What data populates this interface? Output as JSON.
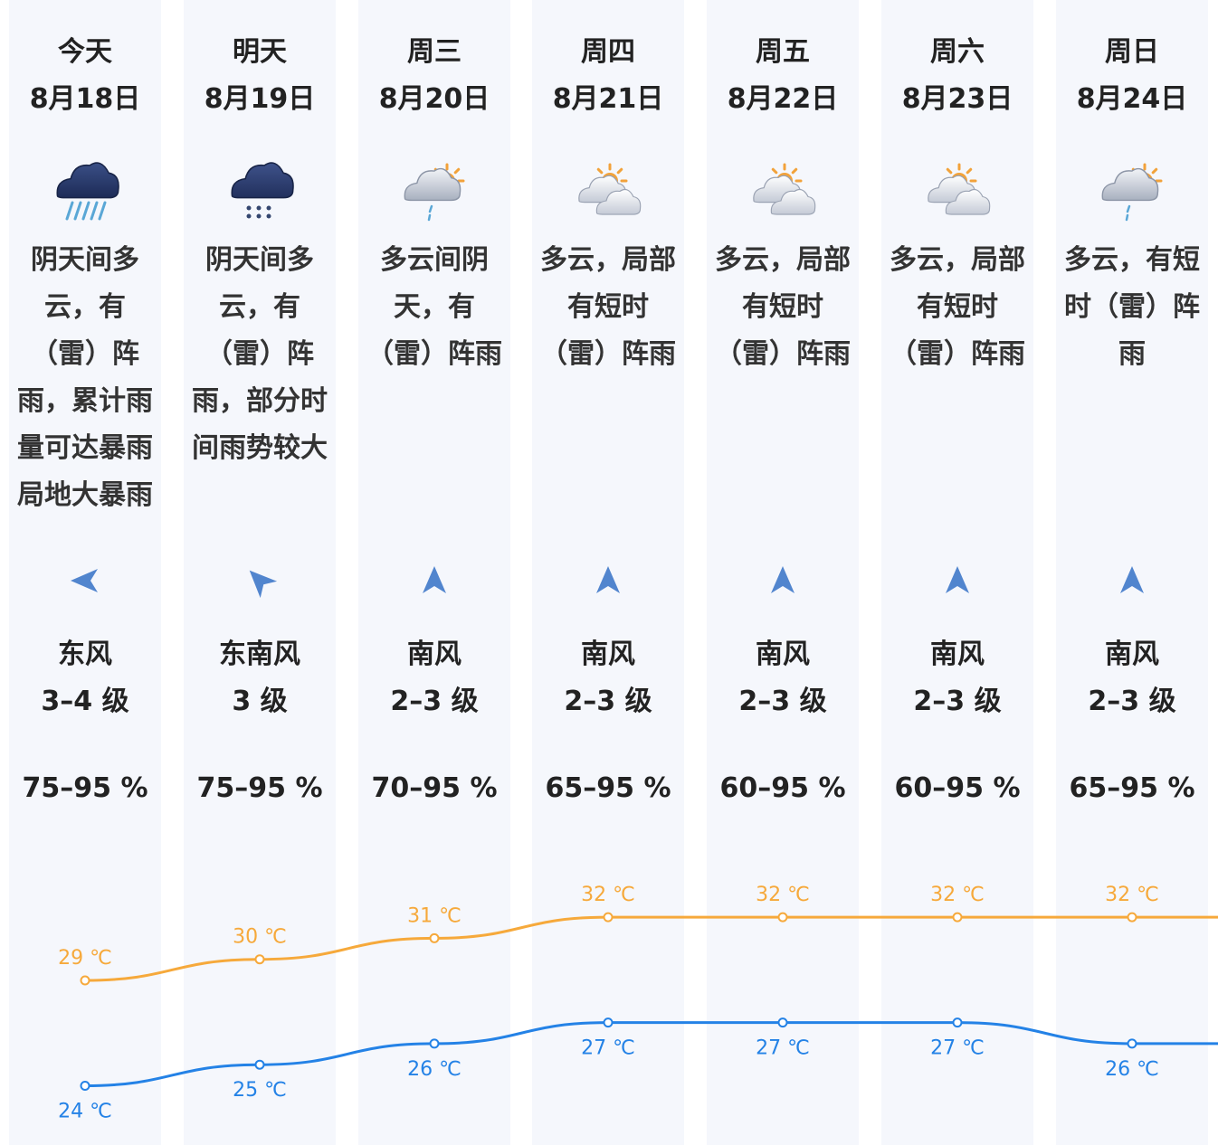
{
  "days": [
    {
      "day": "今天",
      "date": "8月18日",
      "icon": "heavy-rain-icon",
      "desc": [
        "阴天间多",
        "云，有",
        "（雷）阵",
        "雨，累计雨",
        "量可达暴雨",
        "局地大暴雨"
      ],
      "wind_dir": "东风",
      "wind_level": "3–4 级",
      "wind_arrow": "arrow-west-icon",
      "humidity": "75–95 %",
      "high": "29 ℃",
      "low": "24 ℃"
    },
    {
      "day": "明天",
      "date": "8月19日",
      "icon": "rain-icon",
      "desc": [
        "阴天间多",
        "云，有",
        "（雷）阵",
        "雨，部分时",
        "间雨势较大"
      ],
      "wind_dir": "东南风",
      "wind_level": "3 级",
      "wind_arrow": "arrow-northwest-icon",
      "humidity": "75–95 %",
      "high": "30 ℃",
      "low": "25 ℃"
    },
    {
      "day": "周三",
      "date": "8月20日",
      "icon": "partly-cloudy-shower-icon",
      "desc": [
        "多云间阴",
        "天，有",
        "（雷）阵雨"
      ],
      "wind_dir": "南风",
      "wind_level": "2–3 级",
      "wind_arrow": "arrow-north-icon",
      "humidity": "70–95 %",
      "high": "31 ℃",
      "low": "26 ℃"
    },
    {
      "day": "周四",
      "date": "8月21日",
      "icon": "partly-cloudy-icon",
      "desc": [
        "多云，局部",
        "有短时",
        "（雷）阵雨"
      ],
      "wind_dir": "南风",
      "wind_level": "2–3 级",
      "wind_arrow": "arrow-north-icon",
      "humidity": "65–95 %",
      "high": "32 ℃",
      "low": "27 ℃"
    },
    {
      "day": "周五",
      "date": "8月22日",
      "icon": "partly-cloudy-icon",
      "desc": [
        "多云，局部",
        "有短时",
        "（雷）阵雨"
      ],
      "wind_dir": "南风",
      "wind_level": "2–3 级",
      "wind_arrow": "arrow-north-icon",
      "humidity": "60–95 %",
      "high": "32 ℃",
      "low": "27 ℃"
    },
    {
      "day": "周六",
      "date": "8月23日",
      "icon": "partly-cloudy-icon",
      "desc": [
        "多云，局部",
        "有短时",
        "（雷）阵雨"
      ],
      "wind_dir": "南风",
      "wind_level": "2–3 级",
      "wind_arrow": "arrow-north-icon",
      "humidity": "60–95 %",
      "high": "32 ℃",
      "low": "27 ℃"
    },
    {
      "day": "周日",
      "date": "8月24日",
      "icon": "partly-cloudy-shower-icon",
      "desc": [
        "多云，有短",
        "时（雷）阵",
        "雨"
      ],
      "wind_dir": "南风",
      "wind_level": "2–3 级",
      "wind_arrow": "arrow-north-icon",
      "humidity": "65–95 %",
      "high": "32 ℃",
      "low": "26 ℃"
    }
  ],
  "colors": {
    "high": "#f6a93b",
    "low": "#2482e6",
    "column_bg": "#f5f7fc"
  },
  "chart_data": {
    "type": "line",
    "categories": [
      "今天",
      "明天",
      "周三",
      "周四",
      "周五",
      "周六",
      "周日"
    ],
    "series": [
      {
        "values": [
          29,
          30,
          31,
          32,
          32,
          32,
          32
        ]
      },
      {
        "values": [
          24,
          25,
          26,
          27,
          27,
          27,
          26
        ]
      }
    ],
    "ylim": [
      24,
      32
    ],
    "grid": false
  }
}
